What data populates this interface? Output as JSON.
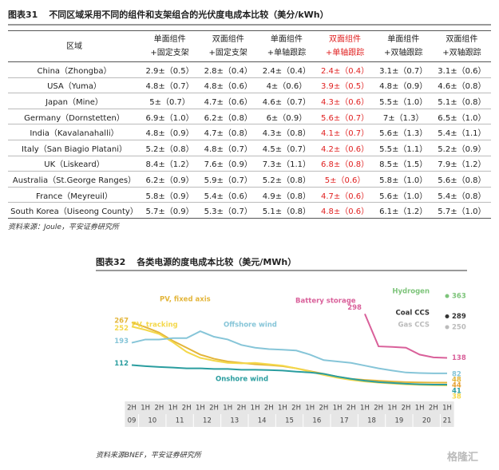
{
  "header": {
    "label": "图表31",
    "title": "不同区域采用不同的组件和支架组合的光伏度电成本比较（美分/kWh）"
  },
  "table": {
    "columns": [
      "区域",
      "单面组件+固定支架",
      "双面组件+固定支架",
      "单面组件+单轴跟踪",
      "双面组件+单轴跟踪",
      "单面组件+双轴跟踪",
      "双面组件+双轴跟踪"
    ],
    "highlight_column": 4,
    "highlight_color": "#e02020",
    "rows": [
      [
        "China（Zhongba）",
        "2.9±（0.5）",
        "2.8±（0.4）",
        "2.4±（0.4）",
        "2.4±（0.4）",
        "3.1±（0.7）",
        "3.1±（0.6）"
      ],
      [
        "USA（Yuma）",
        "4.8±（0.7）",
        "4.8±（0.6）",
        "4±（0.6）",
        "3.9±（0.5）",
        "4.8±（0.9）",
        "4.6±（0.8）"
      ],
      [
        "Japan（Mine）",
        "5±（0.7）",
        "4.7±（0.6）",
        "4.6±（0.7）",
        "4.3±（0.6）",
        "5.5±（1.0）",
        "5.1±（0.8）"
      ],
      [
        "Germany（Dornstetten）",
        "6.9±（1.0）",
        "6.2±（0.8）",
        "6±（0.9）",
        "5.6±（0.7）",
        "7±（1.3）",
        "6.5±（1.0）"
      ],
      [
        "India（Kavalanahalli）",
        "4.8±（0.9）",
        "4.7±（0.8）",
        "4.3±（0.8）",
        "4.1±（0.7）",
        "5.6±（1.3）",
        "5.4±（1.1）"
      ],
      [
        "Italy（San Biagio Platani）",
        "5.2±（0.8）",
        "4.8±（0.7）",
        "4.5±（0.7）",
        "4.2±（0.6）",
        "5.5±（1.1）",
        "5.2±（0.9）"
      ],
      [
        "UK（Liskeard）",
        "8.4±（1.2）",
        "7.6±（0.9）",
        "7.3±（1.1）",
        "6.8±（0.8）",
        "8.5±（1.5）",
        "7.9±（1.2）"
      ],
      [
        "Australia（St.George Ranges）",
        "6.2±（0.9）",
        "5.9±（0.7）",
        "5.2±（0.8）",
        "5±（0.6）",
        "5.8±（1.0）",
        "5.6±（0.8）"
      ],
      [
        "France（Meyreuil）",
        "5.8±（0.9）",
        "5.4±（0.6）",
        "4.9±（0.8）",
        "4.7±（0.6）",
        "5.6±（1.0）",
        "5.4±（0.8）"
      ],
      [
        "South Korea（Uiseong County）",
        "5.7±（0.9）",
        "5.3±（0.7）",
        "5.1±（0.8）",
        "4.8±（0.6）",
        "6.1±（1.2）",
        "5.7±（1.0）"
      ]
    ]
  },
  "table_source": "资料来源：Joule，平安证券研究所",
  "chart_data": {
    "type": "line",
    "label": "图表32",
    "title": "各类电源的度电成本比较（美元/MWh）",
    "categories": [
      "2H",
      "1H",
      "2H",
      "1H",
      "2H",
      "1H",
      "2H",
      "1H",
      "2H",
      "1H",
      "2H",
      "1H",
      "2H",
      "1H",
      "2H",
      "1H",
      "2H",
      "1H",
      "2H",
      "1H",
      "2H",
      "1H",
      "2H",
      "1H"
    ],
    "years": [
      "09",
      "10",
      "11",
      "12",
      "13",
      "14",
      "15",
      "16",
      "17",
      "18",
      "19",
      "20",
      "21"
    ],
    "series": [
      {
        "name": "PV, fixed axis",
        "color": "#e3b53a",
        "values": [
          267,
          250,
          230,
          200,
          175,
          150,
          135,
          125,
          120,
          115,
          112,
          108,
          100,
          90,
          80,
          70,
          62,
          58,
          55,
          52,
          50,
          49,
          48,
          48
        ]
      },
      {
        "name": "PV, tracking",
        "color": "#f4d84a",
        "values": [
          252,
          240,
          225,
          195,
          160,
          138,
          128,
          120,
          118,
          120,
          115,
          110,
          100,
          88,
          76,
          66,
          58,
          52,
          48,
          45,
          42,
          40,
          39,
          38
        ]
      },
      {
        "name": "Offshore wind",
        "color": "#86c5d8",
        "values": [
          193,
          205,
          205,
          210,
          210,
          235,
          215,
          205,
          185,
          175,
          170,
          168,
          165,
          150,
          130,
          125,
          120,
          110,
          100,
          92,
          85,
          83,
          82,
          82
        ]
      },
      {
        "name": "Onshore wind",
        "color": "#2a9d9f",
        "values": [
          112,
          108,
          105,
          103,
          100,
          100,
          98,
          98,
          95,
          95,
          94,
          92,
          88,
          85,
          80,
          70,
          62,
          55,
          50,
          47,
          44,
          42,
          41,
          41
        ]
      },
      {
        "name": "Battery storage",
        "color": "#d9609a",
        "values": [
          null,
          null,
          null,
          null,
          null,
          null,
          null,
          null,
          null,
          null,
          null,
          null,
          null,
          null,
          null,
          null,
          null,
          298,
          180,
          178,
          175,
          150,
          140,
          138
        ]
      },
      {
        "name": "Hydrogen",
        "color": "#7dc47a",
        "values": [
          null,
          null,
          null,
          null,
          null,
          null,
          null,
          null,
          null,
          null,
          null,
          null,
          null,
          null,
          null,
          null,
          null,
          null,
          null,
          null,
          null,
          null,
          null,
          363
        ]
      },
      {
        "name": "Coal CCS",
        "color": "#333333",
        "values": [
          null,
          null,
          null,
          null,
          null,
          null,
          null,
          null,
          null,
          null,
          null,
          null,
          null,
          null,
          null,
          null,
          null,
          null,
          null,
          null,
          null,
          null,
          null,
          289
        ]
      },
      {
        "name": "Gas CCS",
        "color": "#bbbbbb",
        "values": [
          null,
          null,
          null,
          null,
          null,
          null,
          null,
          null,
          null,
          null,
          null,
          null,
          null,
          null,
          null,
          null,
          null,
          null,
          null,
          null,
          null,
          null,
          null,
          250
        ]
      }
    ],
    "annotations": [
      {
        "text": "44",
        "color": "#e8a030"
      }
    ]
  },
  "chart_source": "资料来源BNEF，平安证券研究所",
  "watermark": "格隆汇"
}
